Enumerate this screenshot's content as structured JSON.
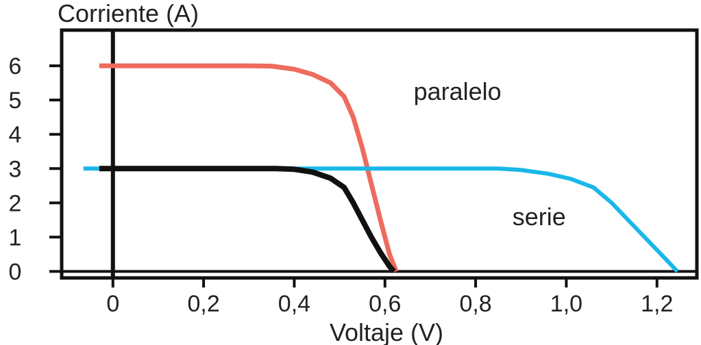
{
  "chart_data": {
    "type": "line",
    "title": "",
    "ylabel": "Corriente (A)",
    "xlabel": "Voltaje (V)",
    "xlim": [
      -0.11,
      1.285
    ],
    "ylim": [
      -0.15,
      7.0
    ],
    "x_ticks": [
      0,
      0.2,
      0.4,
      0.6,
      0.8,
      1.0,
      1.2
    ],
    "x_tick_labels": [
      "0",
      "0,2",
      "0,4",
      "0,6",
      "0,8",
      "1,0",
      "1,2"
    ],
    "y_ticks": [
      0,
      1,
      2,
      3,
      4,
      5,
      6
    ],
    "y_tick_labels": [
      "0",
      "1",
      "2",
      "3",
      "4",
      "5",
      "6"
    ],
    "grid": false,
    "legend": "none",
    "series": [
      {
        "name": "paralelo",
        "color": "#ee6b5e",
        "points": [
          [
            -0.03,
            6.0
          ],
          [
            0.1,
            6.0
          ],
          [
            0.2,
            6.0
          ],
          [
            0.3,
            6.0
          ],
          [
            0.35,
            5.99
          ],
          [
            0.4,
            5.9
          ],
          [
            0.44,
            5.75
          ],
          [
            0.48,
            5.5
          ],
          [
            0.51,
            5.1
          ],
          [
            0.53,
            4.5
          ],
          [
            0.55,
            3.6
          ],
          [
            0.57,
            2.55
          ],
          [
            0.59,
            1.5
          ],
          [
            0.61,
            0.5
          ],
          [
            0.625,
            0.0
          ]
        ]
      },
      {
        "name": "serie",
        "color": "#1ab7e8",
        "points": [
          [
            -0.065,
            3.0
          ],
          [
            0.2,
            3.0
          ],
          [
            0.4,
            3.0
          ],
          [
            0.6,
            3.0
          ],
          [
            0.7,
            3.0
          ],
          [
            0.8,
            3.0
          ],
          [
            0.85,
            3.0
          ],
          [
            0.9,
            2.96
          ],
          [
            0.96,
            2.85
          ],
          [
            1.01,
            2.7
          ],
          [
            1.06,
            2.45
          ],
          [
            1.1,
            2.0
          ],
          [
            1.14,
            1.45
          ],
          [
            1.18,
            0.9
          ],
          [
            1.22,
            0.35
          ],
          [
            1.245,
            0.0
          ]
        ]
      },
      {
        "name": "",
        "color": "#111111",
        "points": [
          [
            -0.03,
            3.0
          ],
          [
            0.1,
            3.0
          ],
          [
            0.2,
            3.0
          ],
          [
            0.3,
            3.0
          ],
          [
            0.36,
            3.0
          ],
          [
            0.4,
            2.98
          ],
          [
            0.44,
            2.9
          ],
          [
            0.48,
            2.72
          ],
          [
            0.51,
            2.45
          ],
          [
            0.53,
            2.0
          ],
          [
            0.55,
            1.5
          ],
          [
            0.57,
            1.0
          ],
          [
            0.59,
            0.55
          ],
          [
            0.61,
            0.15
          ],
          [
            0.62,
            0.0
          ]
        ]
      }
    ],
    "annotations": [
      {
        "text": "paralelo",
        "x": 0.76,
        "y": 5.0
      },
      {
        "text": "serie",
        "x": 0.94,
        "y": 1.35
      }
    ]
  }
}
